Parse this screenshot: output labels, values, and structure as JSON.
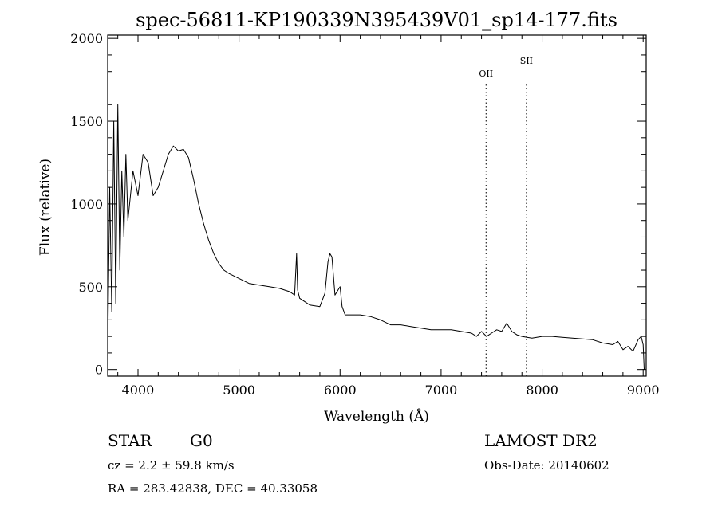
{
  "chart_data": {
    "type": "line",
    "title": "spec-56811-KP190339N395439V01_sp14-177.fits",
    "xlabel": "Wavelength (Å)",
    "ylabel": "Flux (relative)",
    "xlim": [
      3700,
      9030
    ],
    "ylim": [
      -40,
      2020
    ],
    "xticks": [
      4000,
      5000,
      6000,
      7000,
      8000,
      9000
    ],
    "yticks": [
      0,
      500,
      1000,
      1500,
      2000
    ],
    "grid": false,
    "line_markers": [
      {
        "label": "OII",
        "x": 7445
      },
      {
        "label": "SII",
        "x": 7845
      }
    ],
    "series": [
      {
        "x": [
          3700,
          3720,
          3740,
          3760,
          3780,
          3800,
          3820,
          3840,
          3860,
          3880,
          3900,
          3950,
          4000,
          4050,
          4100,
          4150,
          4200,
          4250,
          4300,
          4350,
          4400,
          4450,
          4500,
          4550,
          4600,
          4650,
          4700,
          4750,
          4800,
          4850,
          4900,
          5000,
          5100,
          5200,
          5300,
          5400,
          5500,
          5550,
          5570,
          5580,
          5600,
          5700,
          5800,
          5850,
          5880,
          5900,
          5920,
          5950,
          5980,
          6000,
          6020,
          6050,
          6100,
          6200,
          6300,
          6400,
          6500,
          6600,
          6700,
          6800,
          6900,
          7000,
          7100,
          7200,
          7300,
          7350,
          7400,
          7450,
          7500,
          7550,
          7600,
          7650,
          7700,
          7750,
          7800,
          7850,
          7900,
          8000,
          8100,
          8200,
          8300,
          8400,
          8500,
          8600,
          8700,
          8750,
          8800,
          8850,
          8900,
          8950,
          8980,
          9000,
          9010
        ],
        "values": [
          100,
          1100,
          350,
          1500,
          400,
          1600,
          600,
          1200,
          800,
          1300,
          900,
          1200,
          1050,
          1300,
          1250,
          1050,
          1100,
          1200,
          1300,
          1350,
          1320,
          1330,
          1280,
          1150,
          1000,
          880,
          780,
          700,
          640,
          600,
          580,
          550,
          520,
          510,
          500,
          490,
          470,
          450,
          700,
          480,
          430,
          390,
          380,
          460,
          650,
          700,
          680,
          450,
          480,
          500,
          380,
          330,
          330,
          330,
          320,
          300,
          270,
          270,
          260,
          250,
          240,
          240,
          240,
          230,
          220,
          200,
          230,
          200,
          220,
          240,
          230,
          280,
          230,
          210,
          200,
          195,
          190,
          200,
          200,
          195,
          190,
          185,
          180,
          160,
          150,
          170,
          120,
          140,
          110,
          180,
          200,
          150,
          0
        ]
      }
    ]
  },
  "info": {
    "object_class": "STAR",
    "subclass": "G0",
    "redshift": "cz = 2.2 ± 59.8 km/s",
    "coords": "RA = 283.42838, DEC =  40.33058",
    "survey": "LAMOST DR2",
    "obs_date": "Obs-Date: 20140602"
  }
}
